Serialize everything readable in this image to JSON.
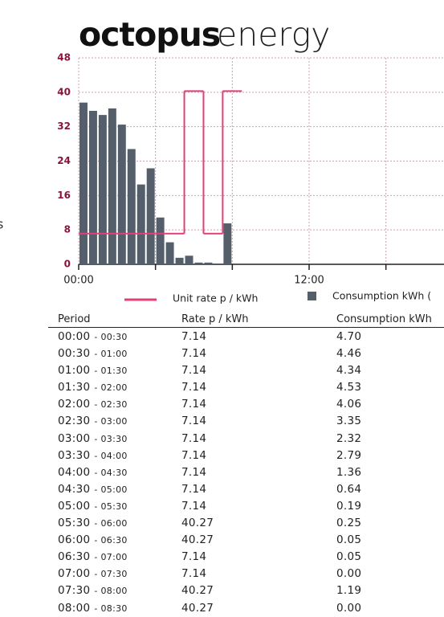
{
  "logo": {
    "bold": "octopus",
    "light": "energy"
  },
  "side_text": "s",
  "chart_data": {
    "type": "step-bar",
    "x": [
      0,
      0.5,
      1,
      1.5,
      2,
      2.5,
      3,
      3.5,
      4,
      4.5,
      5,
      5.5,
      6,
      6.5,
      7,
      7.5,
      8
    ],
    "xlim": [
      0,
      24
    ],
    "xticks": [
      {
        "value": 0,
        "label": "00:00"
      },
      {
        "value": 12,
        "label": "12:00"
      }
    ],
    "xgrid": [
      0,
      4,
      8,
      12,
      16,
      20,
      24
    ],
    "ylim": [
      0,
      48
    ],
    "yticks": [
      0,
      8,
      16,
      24,
      32,
      40,
      48
    ],
    "y2lim": [
      0,
      6
    ],
    "grid": true,
    "series": [
      {
        "name": "Unit rate p / kWh",
        "color": "#e0407a",
        "values": [
          7.14,
          7.14,
          7.14,
          7.14,
          7.14,
          7.14,
          7.14,
          7.14,
          7.14,
          7.14,
          7.14,
          40.27,
          40.27,
          7.14,
          7.14,
          40.27,
          40.27
        ]
      },
      {
        "name": "Consumption kWh (",
        "color": "#555f6b",
        "axis": "y2",
        "values": [
          4.7,
          4.46,
          4.34,
          4.53,
          4.06,
          3.35,
          2.32,
          2.79,
          1.36,
          0.64,
          0.19,
          0.25,
          0.05,
          0.05,
          0.0,
          1.19,
          0.0
        ]
      }
    ]
  },
  "table": {
    "header": [
      "Period",
      "Rate p / kWh",
      "Consumption kWh"
    ],
    "rows": [
      [
        "00:00",
        "- 00:30",
        "7.14",
        "4.70"
      ],
      [
        "00:30",
        "- 01:00",
        "7.14",
        "4.46"
      ],
      [
        "01:00",
        "- 01:30",
        "7.14",
        "4.34"
      ],
      [
        "01:30",
        "- 02:00",
        "7.14",
        "4.53"
      ],
      [
        "02:00",
        "- 02:30",
        "7.14",
        "4.06"
      ],
      [
        "02:30",
        "- 03:00",
        "7.14",
        "3.35"
      ],
      [
        "03:00",
        "- 03:30",
        "7.14",
        "2.32"
      ],
      [
        "03:30",
        "- 04:00",
        "7.14",
        "2.79"
      ],
      [
        "04:00",
        "- 04:30",
        "7.14",
        "1.36"
      ],
      [
        "04:30",
        "- 05:00",
        "7.14",
        "0.64"
      ],
      [
        "05:00",
        "- 05:30",
        "7.14",
        "0.19"
      ],
      [
        "05:30",
        "- 06:00",
        "40.27",
        "0.25"
      ],
      [
        "06:00",
        "- 06:30",
        "40.27",
        "0.05"
      ],
      [
        "06:30",
        "- 07:00",
        "7.14",
        "0.05"
      ],
      [
        "07:00",
        "- 07:30",
        "7.14",
        "0.00"
      ],
      [
        "07:30",
        "- 08:00",
        "40.27",
        "1.19"
      ],
      [
        "08:00",
        "- 08:30",
        "40.27",
        "0.00"
      ]
    ]
  }
}
